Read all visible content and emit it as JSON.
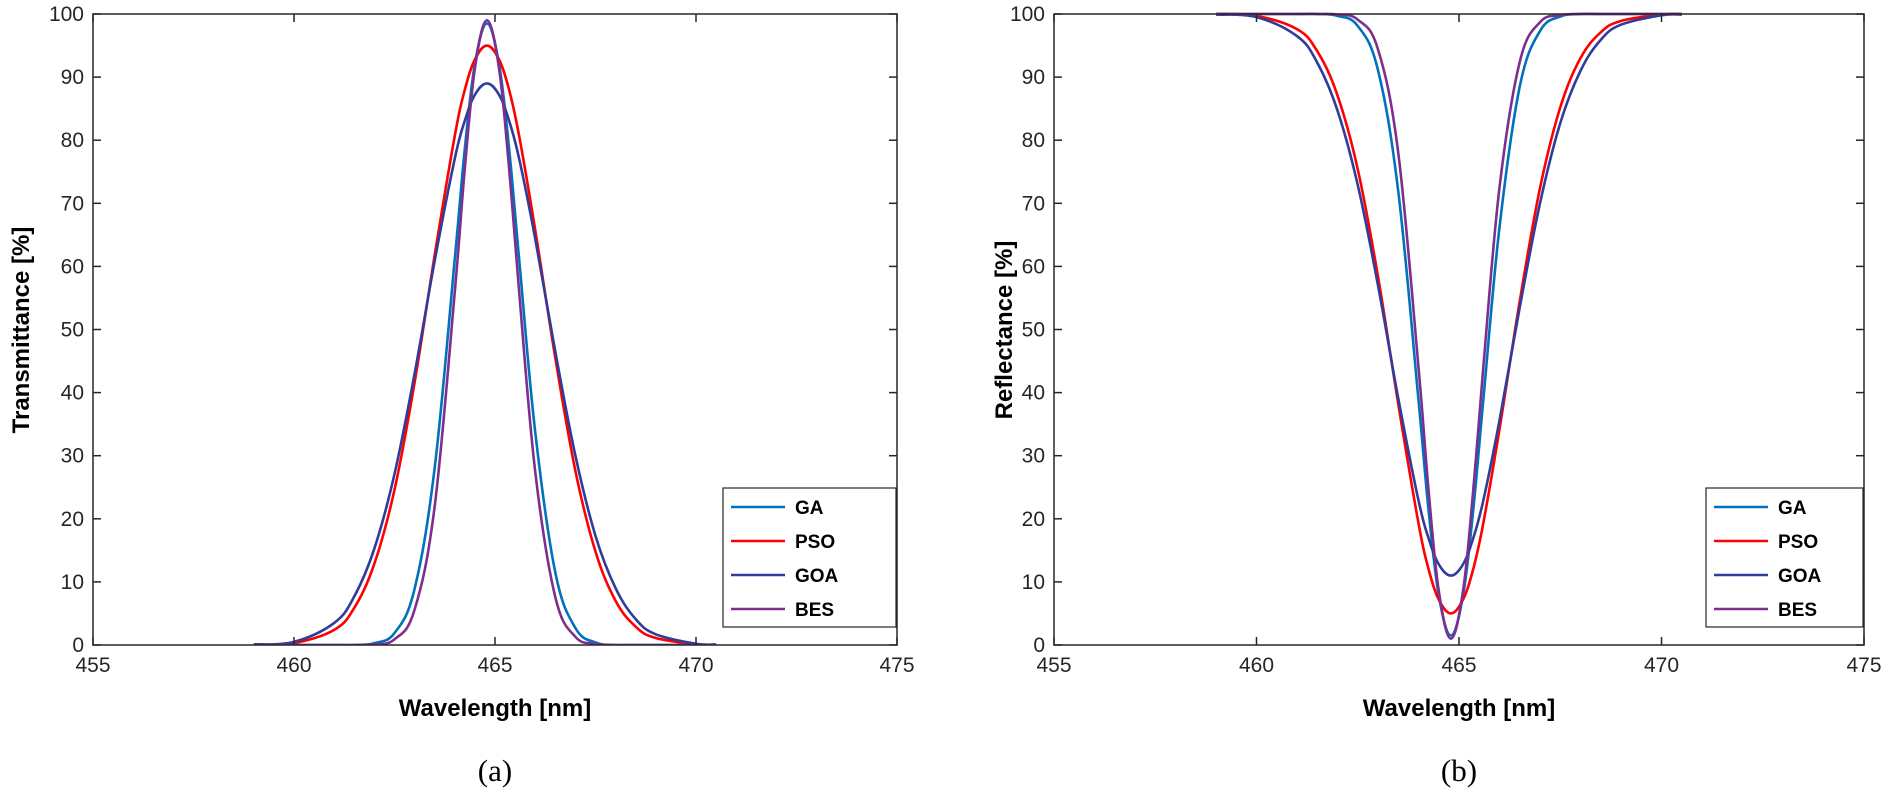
{
  "chart_data": [
    {
      "type": "line",
      "panel_label": "(a)",
      "xlabel": "Wavelength [nm]",
      "ylabel": "Transmittance [%]",
      "xlim": [
        455,
        475
      ],
      "ylim": [
        0,
        100
      ],
      "xticks": [
        455,
        460,
        465,
        470,
        475
      ],
      "yticks": [
        0,
        10,
        20,
        30,
        40,
        50,
        60,
        70,
        80,
        90,
        100
      ],
      "grid": false,
      "legend": "bottom-right",
      "x": [
        459,
        460,
        461,
        461.5,
        462,
        462.5,
        463,
        463.5,
        464,
        464.25,
        464.5,
        464.8,
        465.1,
        465.35,
        465.6,
        466,
        466.5,
        467,
        467.5,
        468,
        468.5,
        469,
        470,
        470.5
      ],
      "series": [
        {
          "name": "GA",
          "color": "#0072BD",
          "values": [
            0,
            0,
            0,
            0,
            0.3,
            1.9,
            8.9,
            28.1,
            61.2,
            78.7,
            92.1,
            98.5,
            92.1,
            78.7,
            61.2,
            33.8,
            11.5,
            2.7,
            0.4,
            0,
            0,
            0,
            0,
            0
          ]
        },
        {
          "name": "PSO",
          "color": "#FF0000",
          "values": [
            0,
            0.3,
            2.4,
            5.9,
            12.9,
            24.6,
            41.6,
            61.8,
            80.7,
            88.0,
            92.8,
            95.0,
            92.8,
            88.0,
            80.7,
            65.8,
            45.5,
            27.6,
            14.8,
            7.0,
            2.9,
            1.1,
            0.1,
            0
          ]
        },
        {
          "name": "GOA",
          "color": "#2E3D9B",
          "values": [
            0.1,
            0.5,
            3.5,
            7.7,
            15.3,
            27.1,
            43.0,
            60.9,
            77.1,
            83.1,
            87.2,
            89.0,
            87.2,
            83.1,
            77.1,
            64.4,
            46.5,
            30.0,
            17.3,
            9.0,
            4.1,
            1.7,
            0.2,
            0.1
          ]
        },
        {
          "name": "BES",
          "color": "#7E2F8E",
          "values": [
            0,
            0,
            0,
            0,
            0.1,
            0.9,
            5.6,
            22.0,
            56.0,
            75.6,
            91.4,
            99.0,
            91.4,
            75.6,
            56.0,
            27.5,
            7.6,
            1.3,
            0.2,
            0,
            0,
            0,
            0,
            0
          ]
        }
      ]
    },
    {
      "type": "line",
      "panel_label": "(b)",
      "xlabel": "Wavelength [nm]",
      "ylabel": "Reflectance [%]",
      "xlim": [
        455,
        475
      ],
      "ylim": [
        0,
        100
      ],
      "xticks": [
        455,
        460,
        465,
        470,
        475
      ],
      "yticks": [
        0,
        10,
        20,
        30,
        40,
        50,
        60,
        70,
        80,
        90,
        100
      ],
      "grid": false,
      "legend": "bottom-right",
      "x": [
        459,
        460,
        461,
        461.5,
        462,
        462.5,
        463,
        463.5,
        464,
        464.25,
        464.5,
        464.8,
        465.1,
        465.35,
        465.6,
        466,
        466.5,
        467,
        467.5,
        468,
        468.5,
        469,
        470,
        470.5
      ],
      "series": [
        {
          "name": "GA",
          "color": "#0072BD",
          "values": [
            100,
            100,
            100,
            100,
            99.7,
            98.1,
            91.1,
            71.9,
            38.8,
            21.3,
            7.9,
            1.5,
            7.9,
            21.3,
            38.8,
            66.2,
            88.5,
            97.3,
            99.6,
            100,
            100,
            100,
            100,
            100
          ]
        },
        {
          "name": "PSO",
          "color": "#FF0000",
          "values": [
            100,
            99.7,
            97.6,
            94.1,
            87.1,
            75.4,
            58.4,
            38.2,
            19.3,
            12.0,
            7.2,
            5.0,
            7.2,
            12.0,
            19.3,
            34.2,
            54.5,
            72.4,
            85.2,
            93.0,
            97.1,
            98.9,
            99.9,
            100
          ]
        },
        {
          "name": "GOA",
          "color": "#2E3D9B",
          "values": [
            99.9,
            99.5,
            96.5,
            92.3,
            84.7,
            72.9,
            57.0,
            39.1,
            22.9,
            16.9,
            12.8,
            11.0,
            12.8,
            16.9,
            22.9,
            35.6,
            53.5,
            70.0,
            82.7,
            91.0,
            95.9,
            98.3,
            99.8,
            99.9
          ]
        },
        {
          "name": "BES",
          "color": "#7E2F8E",
          "values": [
            100,
            100,
            100,
            100,
            99.9,
            99.1,
            94.4,
            78.0,
            44.0,
            24.4,
            8.6,
            1.0,
            8.6,
            24.4,
            44.0,
            72.5,
            92.4,
            98.7,
            99.8,
            100,
            100,
            100,
            100,
            100
          ]
        }
      ]
    }
  ]
}
